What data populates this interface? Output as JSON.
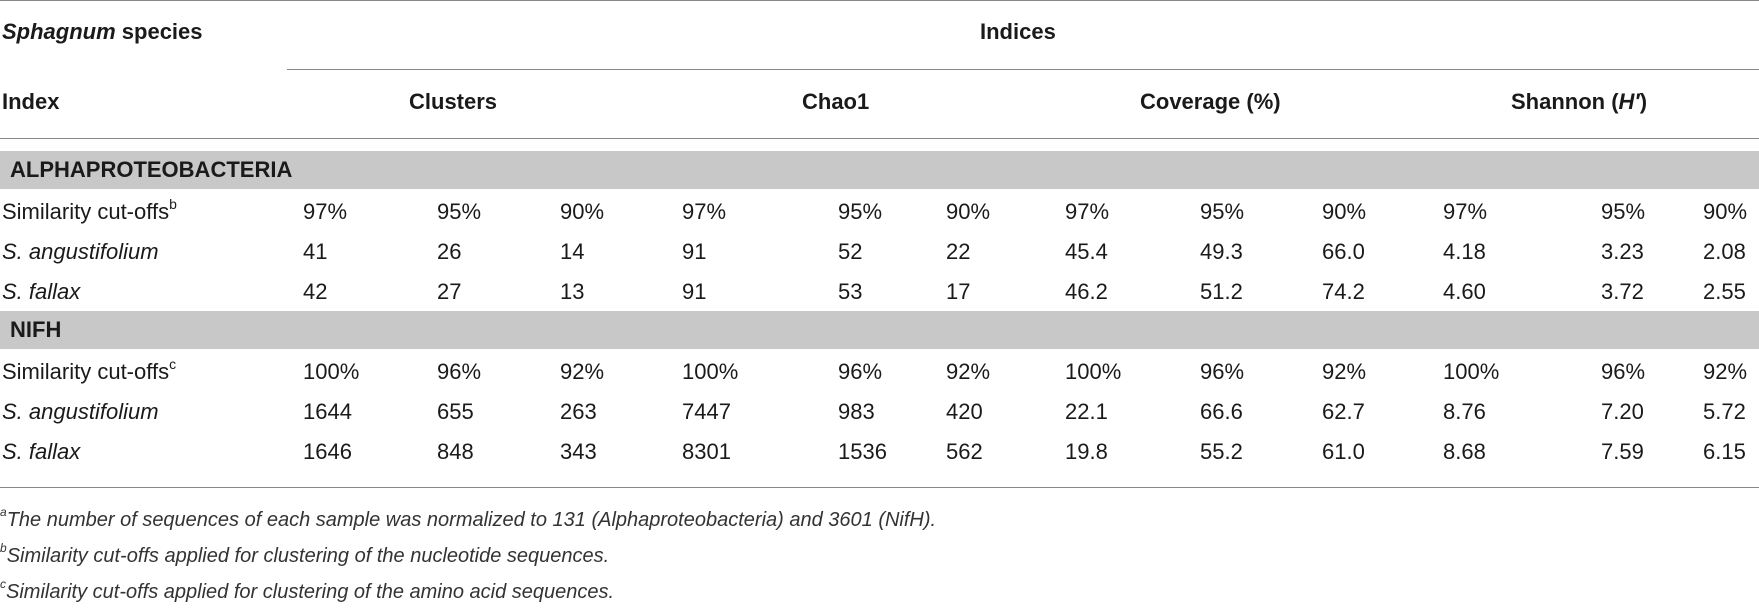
{
  "table": {
    "header": {
      "corner_top_italic": "Sphagnum",
      "corner_top_rest": " species",
      "corner_bottom": "Index",
      "group_title": "Indices",
      "clusters": "Clusters",
      "chao1": "Chao1",
      "coverage": "Coverage (%)",
      "shannon_prefix": "Shannon (",
      "shannon_italic": "H′",
      "shannon_suffix": ")"
    },
    "sections": [
      {
        "title": "ALPHAPROTEOBACTERIA",
        "cutoff_label": "Similarity cut-offs",
        "cutoff_note": "b",
        "cutoffs": [
          "97%",
          "95%",
          "90%",
          "97%",
          "95%",
          "90%",
          "97%",
          "95%",
          "90%",
          "97%",
          "95%",
          "90%"
        ],
        "rows": [
          {
            "species": "S. angustifolium",
            "values": [
              "41",
              "26",
              "14",
              "91",
              "52",
              "22",
              "45.4",
              "49.3",
              "66.0",
              "4.18",
              "3.23",
              "2.08"
            ]
          },
          {
            "species": "S. fallax",
            "values": [
              "42",
              "27",
              "13",
              "91",
              "53",
              "17",
              "46.2",
              "51.2",
              "74.2",
              "4.60",
              "3.72",
              "2.55"
            ]
          }
        ]
      },
      {
        "title": "NIFH",
        "cutoff_label": "Similarity cut-offs",
        "cutoff_note": "c",
        "cutoffs": [
          "100%",
          "96%",
          "92%",
          "100%",
          "96%",
          "92%",
          "100%",
          "96%",
          "92%",
          "100%",
          "96%",
          "92%"
        ],
        "rows": [
          {
            "species": "S. angustifolium",
            "values": [
              "1644",
              "655",
              "263",
              "7447",
              "983",
              "420",
              "22.1",
              "66.6",
              "62.7",
              "8.76",
              "7.20",
              "5.72"
            ]
          },
          {
            "species": "S. fallax",
            "values": [
              "1646",
              "848",
              "343",
              "8301",
              "1536",
              "562",
              "19.8",
              "55.2",
              "61.0",
              "8.68",
              "7.59",
              "6.15"
            ]
          }
        ]
      }
    ],
    "footnotes": [
      {
        "mark": "a",
        "text": "The number of sequences of each sample was normalized to 131 (Alphaproteobacteria) and 3601 (NifH)."
      },
      {
        "mark": "b",
        "text": "Similarity cut-offs applied for clustering of the nucleotide sequences."
      },
      {
        "mark": "c",
        "text": "Similarity cut-offs applied for clustering of the amino acid sequences."
      }
    ]
  }
}
